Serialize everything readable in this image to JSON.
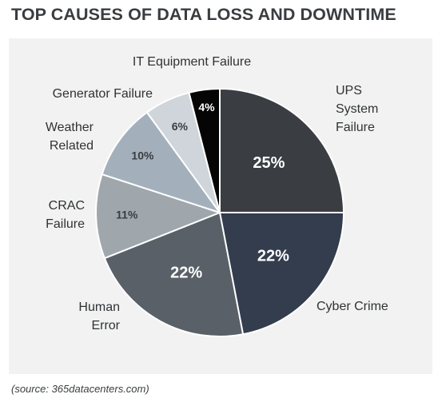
{
  "title": "TOP CAUSES OF DATA LOSS AND DOWNTIME",
  "source": "(source: 365datacenters.com)",
  "chart_data": {
    "type": "pie",
    "title": "TOP CAUSES OF DATA LOSS AND DOWNTIME",
    "slices": [
      {
        "label": "UPS System Failure",
        "value": 25,
        "data_label": "25%",
        "color": "#3a3e43",
        "label_color": "#ffffff"
      },
      {
        "label": "Cyber Crime",
        "value": 22,
        "data_label": "22%",
        "color": "#343d4e",
        "label_color": "#ffffff"
      },
      {
        "label": "Human Error",
        "value": 22,
        "data_label": "22%",
        "color": "#596067",
        "label_color": "#ffffff"
      },
      {
        "label": "CRAC Failure",
        "value": 11,
        "data_label": "11%",
        "color": "#9fa7ad",
        "label_color": "#3a3d40"
      },
      {
        "label": "Weather Related",
        "value": 10,
        "data_label": "10%",
        "color": "#a3b0bc",
        "label_color": "#3a3d40"
      },
      {
        "label": "Generator Failure",
        "value": 6,
        "data_label": "6%",
        "color": "#d0d5db",
        "label_color": "#3a3d40"
      },
      {
        "label": "IT Equipment Failure",
        "value": 4,
        "data_label": "4%",
        "color": "#050505",
        "label_color": "#ffffff"
      }
    ],
    "start_angle": "12 o'clock",
    "direction": "clockwise",
    "legend": "none"
  }
}
